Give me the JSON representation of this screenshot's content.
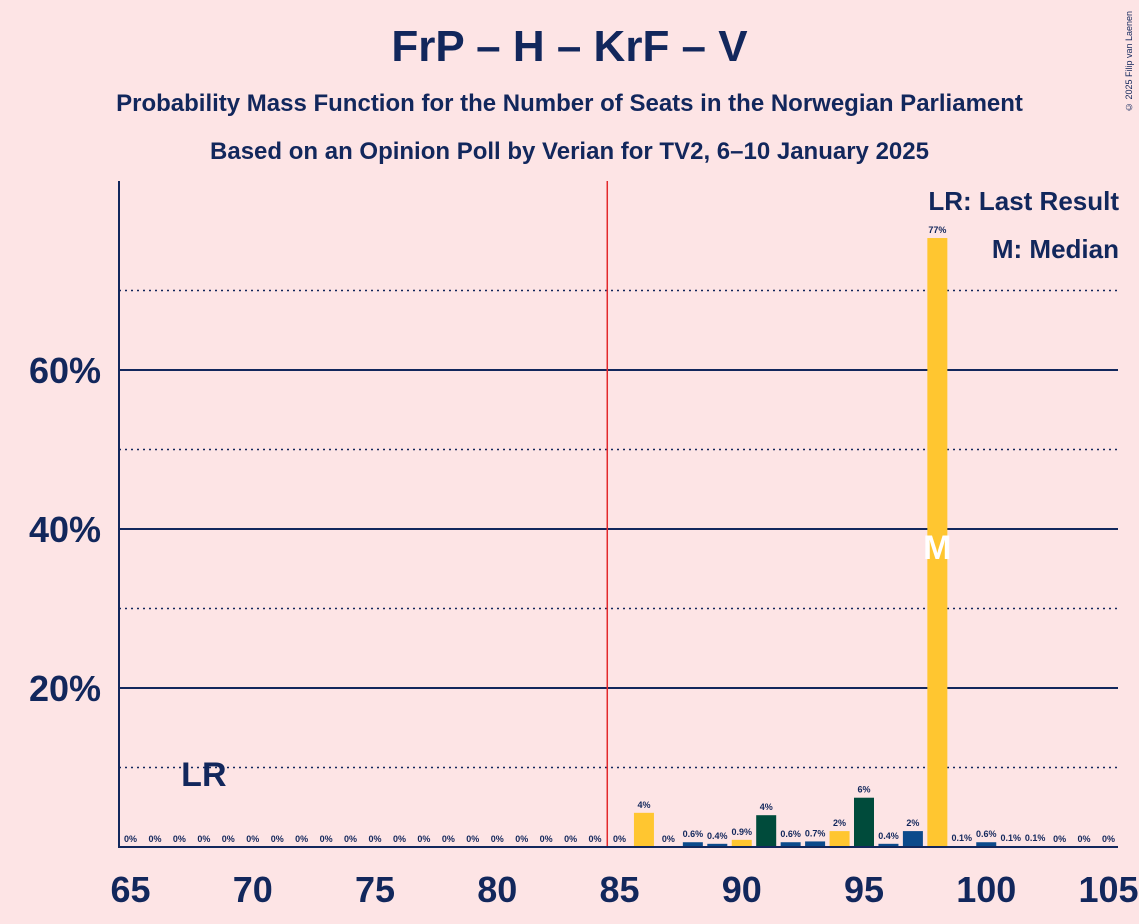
{
  "title": "FrP – H – KrF – V",
  "subtitle1": "Probability Mass Function for the Number of Seats in the Norwegian Parliament",
  "subtitle2": "Based on an Opinion Poll by Verian for TV2, 6–10 January 2025",
  "copyright": "© 2025 Filip van Laenen",
  "legend": {
    "last_result": "LR: Last Result",
    "median": "M: Median"
  },
  "markers": {
    "last_result_label": "LR",
    "median_label": "M"
  },
  "colors": {
    "background": "#fde4e5",
    "text": "#12275c",
    "majority_line": "#e3282b",
    "bar_yellow": "#ffc630",
    "bar_blue": "#0c4a8b",
    "bar_green": "#004b3b"
  },
  "chart_data": {
    "type": "bar",
    "x": [
      65,
      66,
      67,
      68,
      69,
      70,
      71,
      72,
      73,
      74,
      75,
      76,
      77,
      78,
      79,
      80,
      81,
      82,
      83,
      84,
      85,
      86,
      87,
      88,
      89,
      90,
      91,
      92,
      93,
      94,
      95,
      96,
      97,
      98,
      99,
      100,
      101,
      102,
      103,
      104,
      105
    ],
    "values": [
      0,
      0,
      0,
      0,
      0,
      0,
      0,
      0,
      0,
      0,
      0,
      0,
      0,
      0,
      0,
      0,
      0,
      0,
      0,
      0,
      0,
      4.3,
      0,
      0.6,
      0.4,
      0.9,
      4.0,
      0.6,
      0.7,
      2.0,
      6.2,
      0.4,
      2.0,
      76.6,
      0.1,
      0.6,
      0.1,
      0.1,
      0,
      0,
      0
    ],
    "labels": [
      "0%",
      "0%",
      "0%",
      "0%",
      "0%",
      "0%",
      "0%",
      "0%",
      "0%",
      "0%",
      "0%",
      "0%",
      "0%",
      "0%",
      "0%",
      "0%",
      "0%",
      "0%",
      "0%",
      "0%",
      "0%",
      "4%",
      "0%",
      "0.6%",
      "0.4%",
      "0.9%",
      "4%",
      "0.6%",
      "0.7%",
      "2%",
      "6%",
      "0.4%",
      "2%",
      "77%",
      "0.1%",
      "0.6%",
      "0.1%",
      "0.1%",
      "0%",
      "0%",
      "0%"
    ],
    "bar_colors": [
      "yellow",
      "yellow",
      "yellow",
      "yellow",
      "yellow",
      "yellow",
      "yellow",
      "yellow",
      "yellow",
      "yellow",
      "yellow",
      "yellow",
      "yellow",
      "yellow",
      "yellow",
      "yellow",
      "yellow",
      "yellow",
      "yellow",
      "yellow",
      "yellow",
      "yellow",
      "yellow",
      "blue",
      "blue",
      "yellow",
      "green",
      "blue",
      "blue",
      "yellow",
      "green",
      "blue",
      "blue",
      "yellow",
      "blue",
      "blue",
      "blue",
      "blue",
      "blue",
      "blue",
      "blue"
    ],
    "xticks": [
      "65",
      "70",
      "75",
      "80",
      "85",
      "90",
      "95",
      "100",
      "105"
    ],
    "yticks": [
      "20%",
      "40%",
      "60%"
    ],
    "ylim": [
      0,
      80
    ],
    "solid_grid": [
      20,
      40,
      60
    ],
    "dotted_grid": [
      10,
      30,
      50,
      70
    ],
    "majority_line_x": 84.5,
    "last_result_x": 68,
    "median_x": 98
  }
}
